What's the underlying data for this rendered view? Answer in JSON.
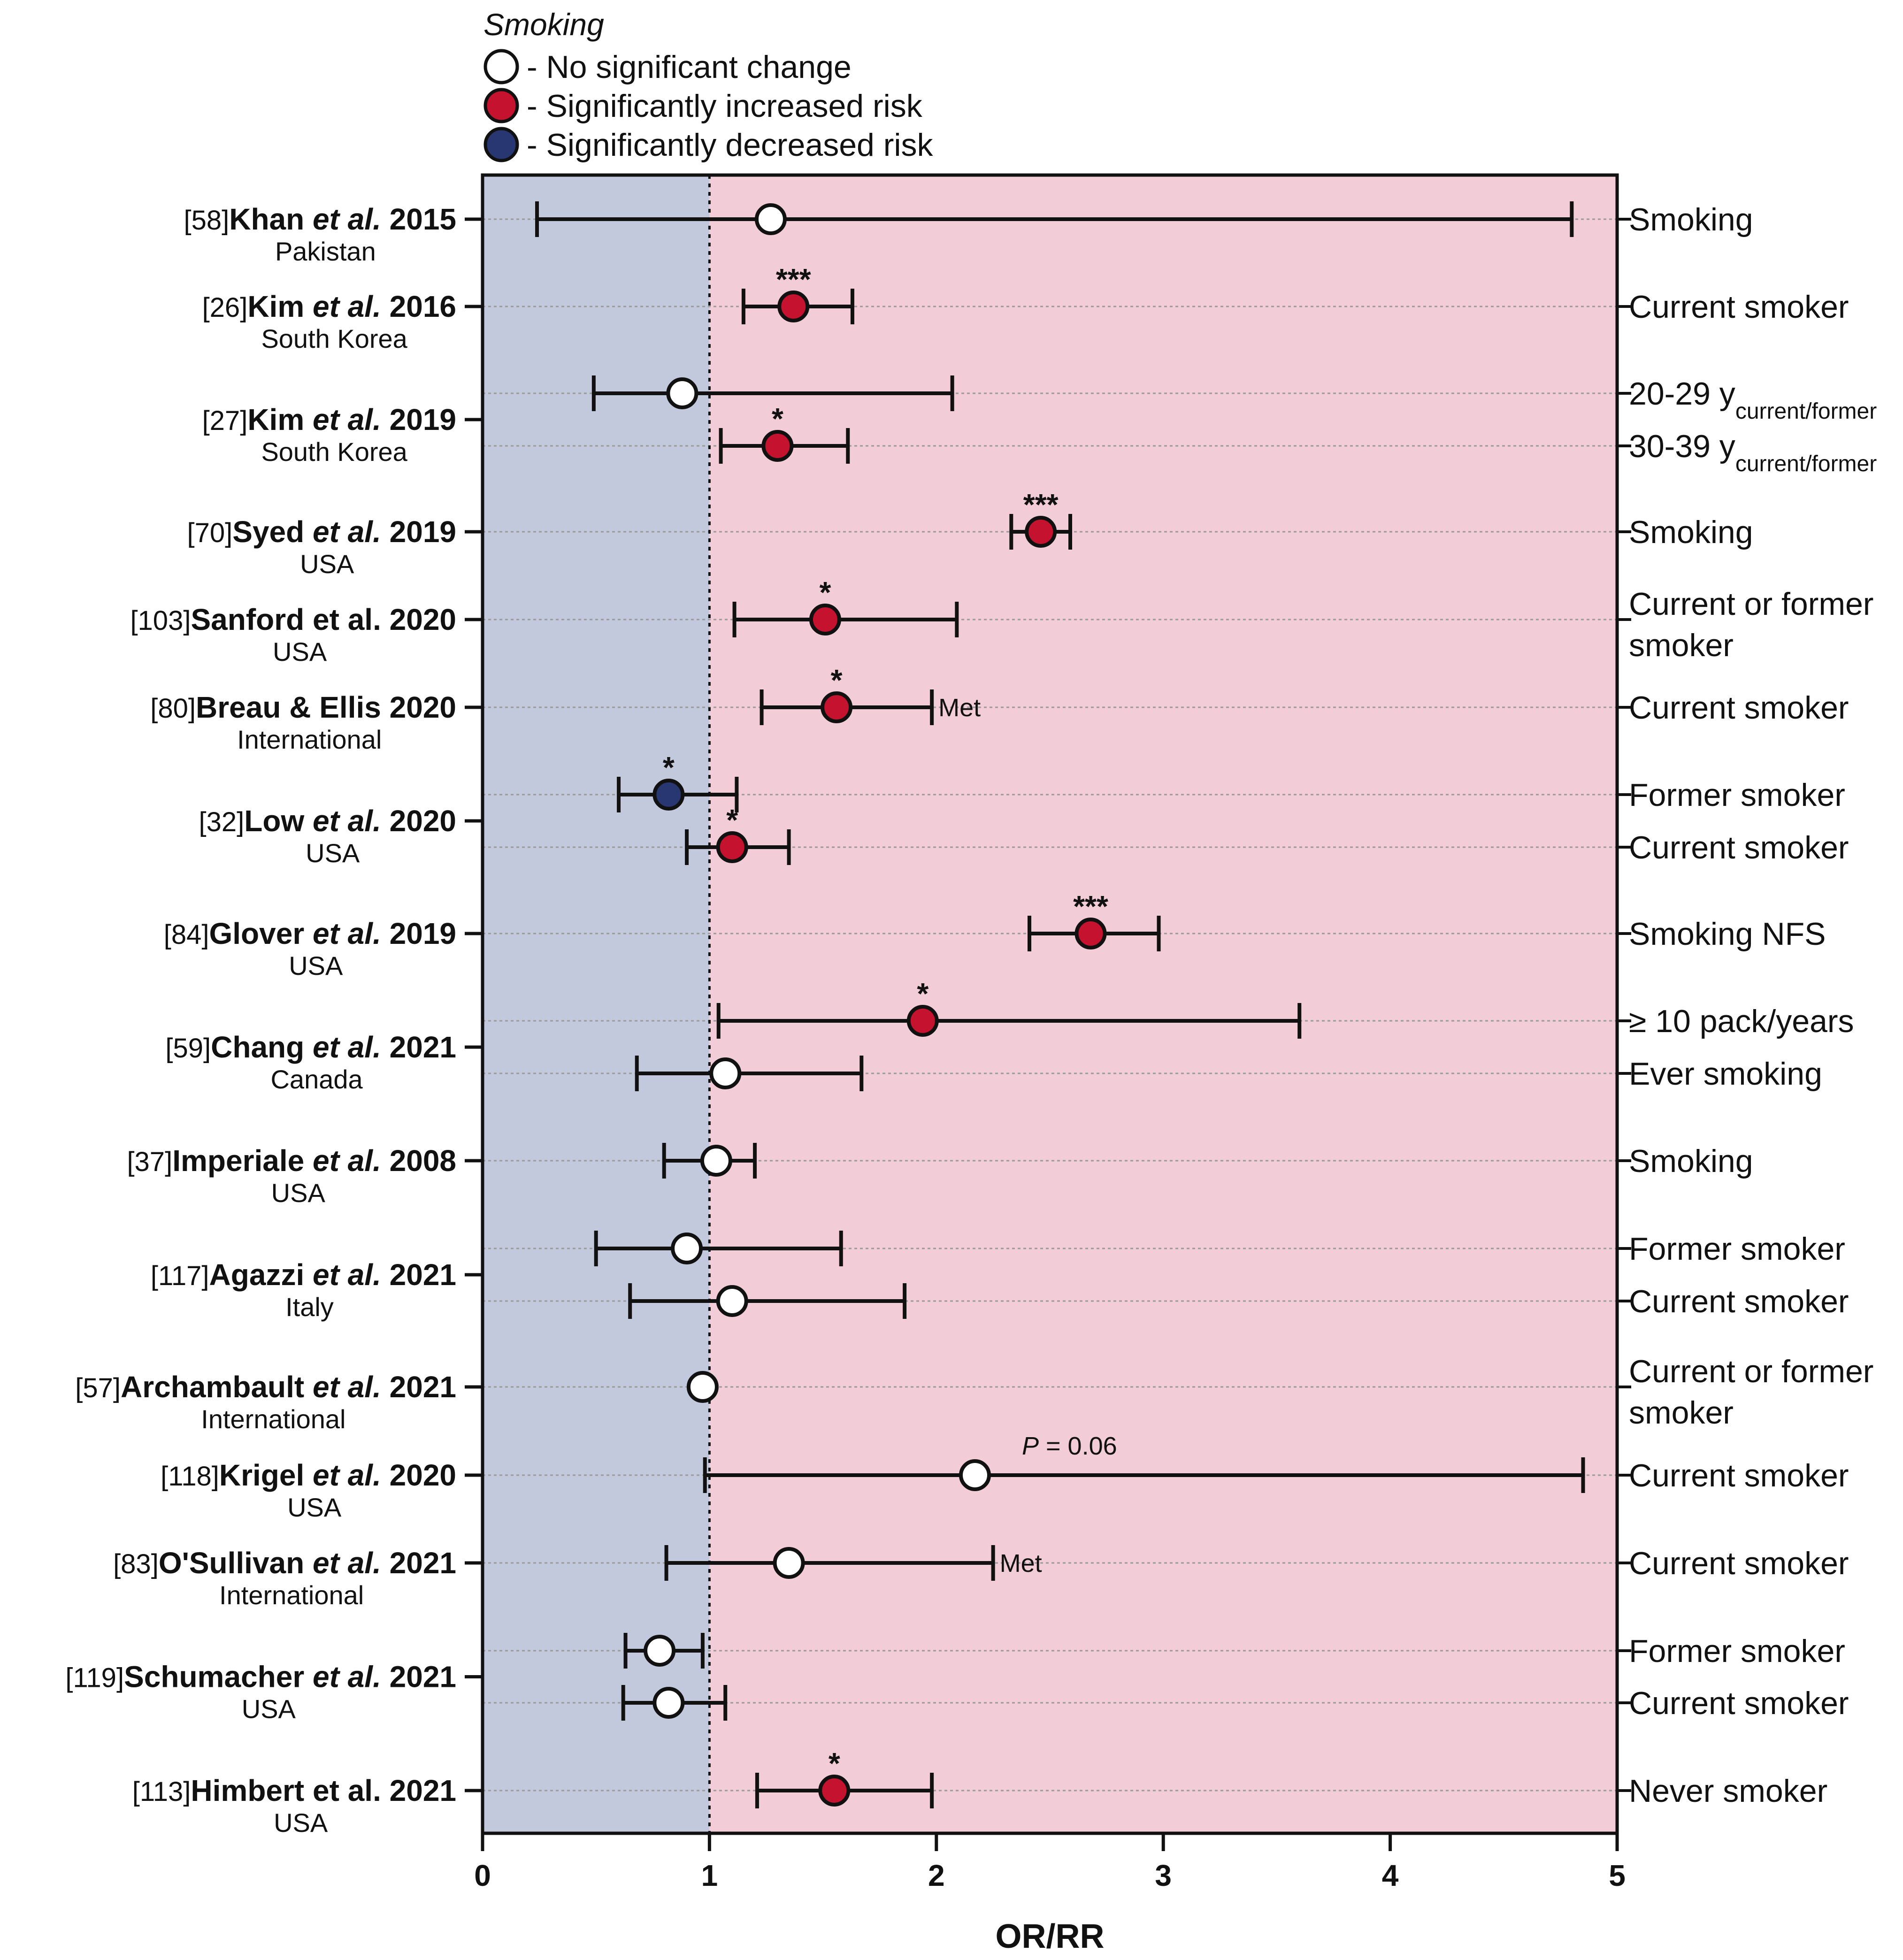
{
  "chart_data": {
    "type": "forest",
    "xlabel": "OR/RR",
    "xlim": [
      0,
      5
    ],
    "xticks": [
      "0",
      "1",
      "2",
      "3",
      "4",
      "5"
    ],
    "reference_line": 1,
    "legend": {
      "title": "Smoking",
      "items": [
        {
          "label": "- No significant change",
          "fill": "#ffffff"
        },
        {
          "label": "- Significantly increased risk",
          "fill": "#c4122f"
        },
        {
          "label": "- Significantly decreased risk",
          "fill": "#283672"
        }
      ]
    },
    "colors": {
      "white": "#ffffff",
      "red": "#c4122f",
      "blue": "#283672",
      "bg_left": "#c3c9dc",
      "bg_right": "#f2ccd6"
    },
    "studies": [
      {
        "ref": "[58]",
        "author": "Khan",
        "etal": "et al.",
        "year": "2015",
        "country": "Pakistan",
        "rows": [
          {
            "outcome": "Smoking",
            "est": 1.27,
            "lo": 0.24,
            "hi": 4.8,
            "sig": "white",
            "stars": ""
          }
        ]
      },
      {
        "ref": "[26]",
        "author": "Kim",
        "etal": "et al.",
        "year": "2016",
        "country": "South Korea",
        "rows": [
          {
            "outcome": "Current smoker",
            "est": 1.37,
            "lo": 1.15,
            "hi": 1.63,
            "sig": "red",
            "stars": "***"
          }
        ]
      },
      {
        "ref": "[27]",
        "author": "Kim",
        "etal": "et al.",
        "year": "2019",
        "country": "South Korea",
        "rows": [
          {
            "outcome": "20-29 y",
            "outcome_sub": "current/former",
            "est": 0.88,
            "lo": 0.49,
            "hi": 2.07,
            "sig": "white",
            "stars": ""
          },
          {
            "outcome": "30-39 y",
            "outcome_sub": "current/former",
            "est": 1.3,
            "lo": 1.05,
            "hi": 1.61,
            "sig": "red",
            "stars": "*"
          }
        ]
      },
      {
        "ref": "[70]",
        "author": "Syed",
        "etal": "et al.",
        "year": "2019",
        "country": "USA",
        "rows": [
          {
            "outcome": "Smoking",
            "est": 2.46,
            "lo": 2.33,
            "hi": 2.59,
            "sig": "red",
            "stars": "***"
          }
        ]
      },
      {
        "ref": "[103]",
        "author": "Sanford",
        "etal": "et al.",
        "year": "2020",
        "country": "USA",
        "plain": true,
        "rows": [
          {
            "outcome": "Current or former",
            "outcome2": "smoker",
            "est": 1.51,
            "lo": 1.11,
            "hi": 2.09,
            "sig": "red",
            "stars": "*"
          }
        ]
      },
      {
        "ref": "[80]",
        "author": "Breau & Ellis",
        "etal": "",
        "year": "2020",
        "country": "International",
        "rows": [
          {
            "outcome": "Current smoker",
            "est": 1.56,
            "lo": 1.23,
            "hi": 1.98,
            "sig": "red",
            "stars": "*",
            "annotation": "Met"
          }
        ]
      },
      {
        "ref": "[32]",
        "author": "Low",
        "etal": "et al.",
        "year": "2020",
        "country": "USA",
        "rows": [
          {
            "outcome": "Former smoker",
            "est": 0.82,
            "lo": 0.6,
            "hi": 1.12,
            "sig": "blue",
            "stars": "*"
          },
          {
            "outcome": "Current smoker",
            "est": 1.1,
            "lo": 0.9,
            "hi": 1.35,
            "sig": "red",
            "stars": "*"
          }
        ]
      },
      {
        "ref": "[84]",
        "author": "Glover",
        "etal": "et al.",
        "year": "2019",
        "country": "USA",
        "rows": [
          {
            "outcome": "Smoking NFS",
            "est": 2.68,
            "lo": 2.41,
            "hi": 2.98,
            "sig": "red",
            "stars": "***"
          }
        ]
      },
      {
        "ref": "[59]",
        "author": "Chang",
        "etal": "et al.",
        "year": "2021",
        "country": "Canada",
        "rows": [
          {
            "outcome": "≥ 10 pack/years",
            "est": 1.94,
            "lo": 1.04,
            "hi": 3.6,
            "sig": "red",
            "stars": "*"
          },
          {
            "outcome": "Ever smoking",
            "est": 1.07,
            "lo": 0.68,
            "hi": 1.67,
            "sig": "white",
            "stars": ""
          }
        ]
      },
      {
        "ref": "[37]",
        "author": "Imperiale",
        "etal": "et al.",
        "year": "2008",
        "country": "USA",
        "rows": [
          {
            "outcome": "Smoking",
            "est": 1.03,
            "lo": 0.8,
            "hi": 1.2,
            "sig": "white",
            "stars": ""
          }
        ]
      },
      {
        "ref": "[117]",
        "author": "Agazzi",
        "etal": "et al.",
        "year": "2021",
        "country": "Italy",
        "rows": [
          {
            "outcome": "Former smoker",
            "est": 0.9,
            "lo": 0.5,
            "hi": 1.58,
            "sig": "white",
            "stars": ""
          },
          {
            "outcome": "Current smoker",
            "est": 1.1,
            "lo": 0.65,
            "hi": 1.86,
            "sig": "white",
            "stars": ""
          }
        ]
      },
      {
        "ref": "[57]",
        "author": "Archambault",
        "etal": "et al.",
        "year": "2021",
        "country": "International",
        "rows": [
          {
            "outcome": "Current or former",
            "outcome2": "smoker",
            "est": 0.97,
            "lo": null,
            "hi": null,
            "sig": "white",
            "stars": ""
          }
        ]
      },
      {
        "ref": "[118]",
        "author": "Krigel",
        "etal": "et al.",
        "year": "2020",
        "country": "USA",
        "rows": [
          {
            "outcome": "Current smoker",
            "est": 2.17,
            "lo": 0.98,
            "hi": 4.85,
            "sig": "white",
            "stars": "",
            "annotation_p": "P",
            "annotation": "= 0.06"
          }
        ]
      },
      {
        "ref": "[83]",
        "author": "O'Sullivan",
        "etal": "et al.",
        "year": "2021",
        "country": "International",
        "rows": [
          {
            "outcome": "Current smoker",
            "est": 1.35,
            "lo": 0.81,
            "hi": 2.25,
            "sig": "white",
            "stars": "",
            "annotation": "Met"
          }
        ]
      },
      {
        "ref": "[119]",
        "author": "Schumacher",
        "etal": "et al.",
        "year": "2021",
        "country": "USA",
        "rows": [
          {
            "outcome": "Former smoker",
            "est": 0.78,
            "lo": 0.63,
            "hi": 0.97,
            "sig": "white",
            "stars": ""
          },
          {
            "outcome": "Current smoker",
            "est": 0.82,
            "lo": 0.62,
            "hi": 1.07,
            "sig": "white",
            "stars": ""
          }
        ]
      },
      {
        "ref": "[113]",
        "author": "Himbert",
        "etal": "et al.",
        "year": "2021",
        "country": "USA",
        "plain": true,
        "rows": [
          {
            "outcome": "Never smoker",
            "est": 1.55,
            "lo": 1.21,
            "hi": 1.98,
            "sig": "red",
            "stars": "*"
          }
        ]
      }
    ]
  }
}
